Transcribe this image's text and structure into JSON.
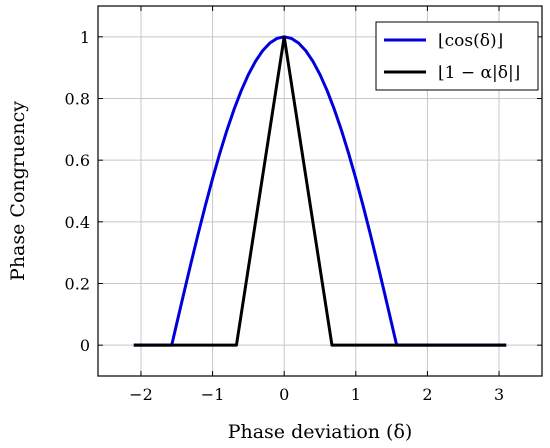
{
  "chart_data": {
    "type": "line",
    "xlabel": "Phase deviation (δ)",
    "ylabel": "Phase Congruency",
    "xlim": [
      -2.6,
      3.6
    ],
    "ylim": [
      -0.1,
      1.1
    ],
    "xticks": [
      -2,
      -1,
      0,
      1,
      2,
      3
    ],
    "yticks": [
      0,
      0.2,
      0.4,
      0.6,
      0.8,
      1
    ],
    "xtick_labels": [
      "−2",
      "−1",
      "0",
      "1",
      "2",
      "3"
    ],
    "ytick_labels": [
      "0",
      "0.2",
      "0.4",
      "0.6",
      "0.8",
      "1"
    ],
    "grid": true,
    "legend_position": "top-right",
    "series": [
      {
        "name": "⌊cos(δ)⌋",
        "color": "#0000dd",
        "x": [
          -2.1,
          -1.5708,
          -1.5,
          -1.4,
          -1.3,
          -1.2,
          -1.1,
          -1.0,
          -0.9,
          -0.8,
          -0.7,
          -0.6,
          -0.5,
          -0.4,
          -0.3,
          -0.2,
          -0.1,
          0.0,
          0.1,
          0.2,
          0.3,
          0.4,
          0.5,
          0.6,
          0.7,
          0.8,
          0.9,
          1.0,
          1.1,
          1.2,
          1.3,
          1.4,
          1.5,
          1.5708,
          3.1
        ],
        "y": [
          0,
          0,
          0.0707,
          0.17,
          0.2675,
          0.3624,
          0.4536,
          0.5403,
          0.6216,
          0.6967,
          0.7648,
          0.8253,
          0.8776,
          0.9211,
          0.9553,
          0.9801,
          0.995,
          1.0,
          0.995,
          0.9801,
          0.9553,
          0.9211,
          0.8776,
          0.8253,
          0.7648,
          0.6967,
          0.6216,
          0.5403,
          0.4536,
          0.3624,
          0.2675,
          0.17,
          0.0707,
          0,
          0
        ]
      },
      {
        "name": "⌊1 − α|δ|⌋",
        "color": "#000000",
        "x": [
          -2.1,
          -0.667,
          0.0,
          0.667,
          3.1
        ],
        "y": [
          0,
          0,
          1.0,
          0,
          0
        ]
      }
    ]
  }
}
